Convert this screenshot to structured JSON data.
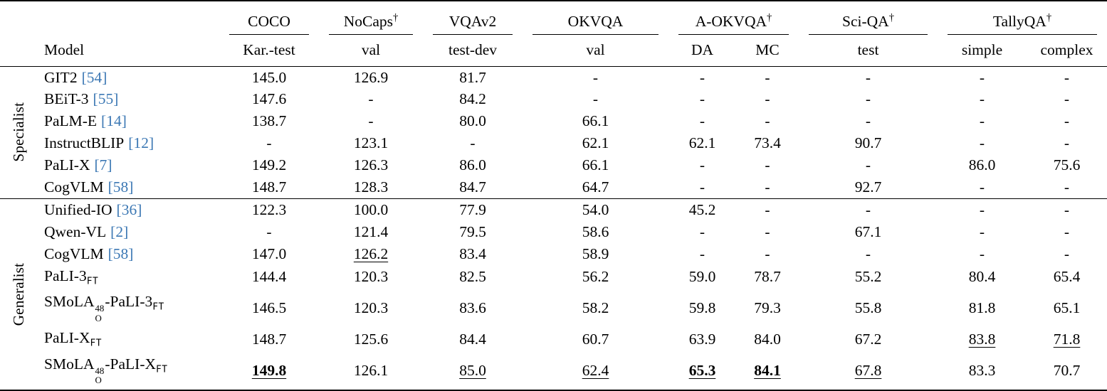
{
  "colors": {
    "citation": "#3c78b4",
    "rule": "#000000"
  },
  "table": {
    "model_header": "Model",
    "groups": [
      {
        "label": "COCO",
        "dagger": ""
      },
      {
        "label": "NoCaps",
        "dagger": "†"
      },
      {
        "label": "VQAv2",
        "dagger": ""
      },
      {
        "label": "OKVQA",
        "dagger": ""
      },
      {
        "label": "A-OKVQA",
        "dagger": "†"
      },
      {
        "label": "Sci-QA",
        "dagger": "†"
      },
      {
        "label": "TallyQA",
        "dagger": "†"
      }
    ],
    "subheaders": [
      "Kar.-test",
      "val",
      "test-dev",
      "val",
      "DA",
      "MC",
      "test",
      "simple",
      "complex"
    ],
    "sections": [
      {
        "label": "Specialist",
        "rows": [
          {
            "name": [
              {
                "t": "GIT2"
              }
            ],
            "cite": "[54]",
            "cells": [
              {
                "v": "145.0"
              },
              {
                "v": "126.9"
              },
              {
                "v": "81.7"
              },
              {
                "v": "-"
              },
              {
                "v": "-"
              },
              {
                "v": "-"
              },
              {
                "v": "-"
              },
              {
                "v": "-"
              },
              {
                "v": "-"
              }
            ]
          },
          {
            "name": [
              {
                "t": "BEiT-3"
              }
            ],
            "cite": "[55]",
            "cells": [
              {
                "v": "147.6"
              },
              {
                "v": "-"
              },
              {
                "v": "84.2"
              },
              {
                "v": "-"
              },
              {
                "v": "-"
              },
              {
                "v": "-"
              },
              {
                "v": "-"
              },
              {
                "v": "-"
              },
              {
                "v": "-"
              }
            ]
          },
          {
            "name": [
              {
                "t": "PaLM-E"
              }
            ],
            "cite": "[14]",
            "cells": [
              {
                "v": "138.7"
              },
              {
                "v": "-"
              },
              {
                "v": "80.0"
              },
              {
                "v": "66.1"
              },
              {
                "v": "-"
              },
              {
                "v": "-"
              },
              {
                "v": "-"
              },
              {
                "v": "-"
              },
              {
                "v": "-"
              }
            ]
          },
          {
            "name": [
              {
                "t": "InstructBLIP"
              }
            ],
            "cite": "[12]",
            "cells": [
              {
                "v": "-"
              },
              {
                "v": "123.1"
              },
              {
                "v": "-"
              },
              {
                "v": "62.1"
              },
              {
                "v": "62.1"
              },
              {
                "v": "73.4"
              },
              {
                "v": "90.7"
              },
              {
                "v": "-"
              },
              {
                "v": "-"
              }
            ]
          },
          {
            "name": [
              {
                "t": "PaLI-X"
              }
            ],
            "cite": "[7]",
            "cells": [
              {
                "v": "149.2"
              },
              {
                "v": "126.3"
              },
              {
                "v": "86.0"
              },
              {
                "v": "66.1"
              },
              {
                "v": "-"
              },
              {
                "v": "-"
              },
              {
                "v": "-"
              },
              {
                "v": "86.0"
              },
              {
                "v": "75.6"
              }
            ]
          },
          {
            "name": [
              {
                "t": "CogVLM"
              }
            ],
            "cite": "[58]",
            "cells": [
              {
                "v": "148.7"
              },
              {
                "v": "128.3"
              },
              {
                "v": "84.7"
              },
              {
                "v": "64.7"
              },
              {
                "v": "-"
              },
              {
                "v": "-"
              },
              {
                "v": "92.7"
              },
              {
                "v": "-"
              },
              {
                "v": "-"
              }
            ]
          }
        ]
      },
      {
        "label": "Generalist",
        "rows": [
          {
            "name": [
              {
                "t": "Unified-IO"
              }
            ],
            "cite": "[36]",
            "cells": [
              {
                "v": "122.3"
              },
              {
                "v": "100.0"
              },
              {
                "v": "77.9"
              },
              {
                "v": "54.0"
              },
              {
                "v": "45.2"
              },
              {
                "v": "-"
              },
              {
                "v": "-"
              },
              {
                "v": "-"
              },
              {
                "v": "-"
              }
            ]
          },
          {
            "name": [
              {
                "t": "Qwen-VL"
              }
            ],
            "cite": "[2]",
            "cells": [
              {
                "v": "-"
              },
              {
                "v": "121.4"
              },
              {
                "v": "79.5"
              },
              {
                "v": "58.6"
              },
              {
                "v": "-"
              },
              {
                "v": "-"
              },
              {
                "v": "67.1"
              },
              {
                "v": "-"
              },
              {
                "v": "-"
              }
            ]
          },
          {
            "name": [
              {
                "t": "CogVLM"
              }
            ],
            "cite": "[58]",
            "cells": [
              {
                "v": "147.0"
              },
              {
                "v": "126.2",
                "u": true
              },
              {
                "v": "83.4"
              },
              {
                "v": "58.9"
              },
              {
                "v": "-"
              },
              {
                "v": "-"
              },
              {
                "v": "-"
              },
              {
                "v": "-"
              },
              {
                "v": "-"
              }
            ]
          },
          {
            "name": [
              {
                "t": "PaLI-3"
              },
              {
                "subm": "FT"
              }
            ],
            "cells": [
              {
                "v": "144.4"
              },
              {
                "v": "120.3"
              },
              {
                "v": "82.5"
              },
              {
                "v": "56.2"
              },
              {
                "v": "59.0"
              },
              {
                "v": "78.7"
              },
              {
                "v": "55.2"
              },
              {
                "v": "80.4"
              },
              {
                "v": "65.4"
              }
            ]
          },
          {
            "name": [
              {
                "t": "SMoLA"
              },
              {
                "stack": {
                  "sup": "48",
                  "sub": "O"
                }
              },
              {
                "t": "-PaLI-3"
              },
              {
                "subm": "FT"
              }
            ],
            "cells": [
              {
                "v": "146.5"
              },
              {
                "v": "120.3"
              },
              {
                "v": "83.6"
              },
              {
                "v": "58.2"
              },
              {
                "v": "59.8"
              },
              {
                "v": "79.3"
              },
              {
                "v": "55.8"
              },
              {
                "v": "81.8"
              },
              {
                "v": "65.1"
              }
            ]
          },
          {
            "name": [
              {
                "t": "PaLI-X"
              },
              {
                "subm": "FT"
              }
            ],
            "cells": [
              {
                "v": "148.7"
              },
              {
                "v": "125.6"
              },
              {
                "v": "84.4"
              },
              {
                "v": "60.7"
              },
              {
                "v": "63.9"
              },
              {
                "v": "84.0"
              },
              {
                "v": "67.2"
              },
              {
                "v": "83.8",
                "u": true
              },
              {
                "v": "71.8",
                "u": true
              }
            ]
          },
          {
            "name": [
              {
                "t": "SMoLA"
              },
              {
                "stack": {
                  "sup": "48",
                  "sub": "O"
                }
              },
              {
                "t": "-PaLI-X"
              },
              {
                "subm": "FT"
              }
            ],
            "cells": [
              {
                "v": "149.8",
                "b": true,
                "u": true
              },
              {
                "v": "126.1"
              },
              {
                "v": "85.0",
                "u": true
              },
              {
                "v": "62.4",
                "u": true
              },
              {
                "v": "65.3",
                "b": true,
                "u": true
              },
              {
                "v": "84.1",
                "b": true,
                "u": true
              },
              {
                "v": "67.8",
                "u": true
              },
              {
                "v": "83.3"
              },
              {
                "v": "70.7"
              }
            ]
          }
        ]
      }
    ]
  }
}
